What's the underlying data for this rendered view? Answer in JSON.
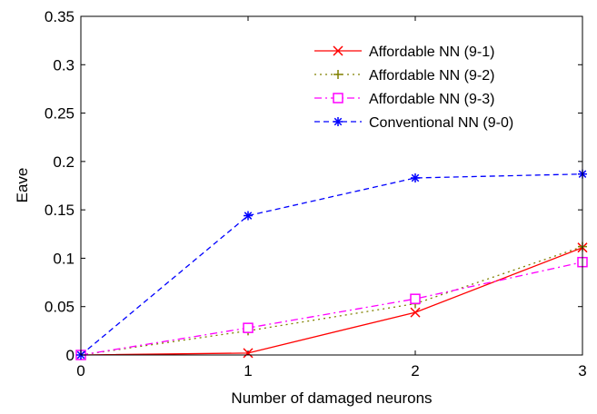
{
  "chart_data": {
    "type": "line",
    "title": "",
    "xlabel": "Number of damaged neurons",
    "ylabel": "Eave",
    "xlim": [
      0,
      3
    ],
    "ylim": [
      0,
      0.35
    ],
    "xticks": [
      0,
      1,
      2,
      3
    ],
    "xtick_labels": [
      "0",
      "1",
      "2",
      "3"
    ],
    "yticks": [
      0,
      0.05,
      0.1,
      0.15,
      0.2,
      0.25,
      0.3,
      0.35
    ],
    "ytick_labels": [
      "0",
      "0.05",
      "0.1",
      "0.15",
      "0.2",
      "0.25",
      "0.3",
      "0.35"
    ],
    "grid": false,
    "legend_position": "top-right",
    "x": [
      0,
      1,
      2,
      3
    ],
    "series": [
      {
        "name": "Affordable NN (9-1)",
        "values": [
          0,
          0.002,
          0.044,
          0.111
        ],
        "color": "#ff0000",
        "line_style": "solid",
        "marker": "x"
      },
      {
        "name": "Affordable NN (9-2)",
        "values": [
          0,
          0.025,
          0.053,
          0.112
        ],
        "color": "#808000",
        "line_style": "dotted",
        "marker": "plus"
      },
      {
        "name": "Affordable NN (9-3)",
        "values": [
          0,
          0.028,
          0.058,
          0.096
        ],
        "color": "#ff00ff",
        "line_style": "dashdot",
        "marker": "square"
      },
      {
        "name": "Conventional NN (9-0)",
        "values": [
          0,
          0.144,
          0.183,
          0.187
        ],
        "color": "#0000ff",
        "line_style": "dashed",
        "marker": "asterisk"
      }
    ]
  }
}
